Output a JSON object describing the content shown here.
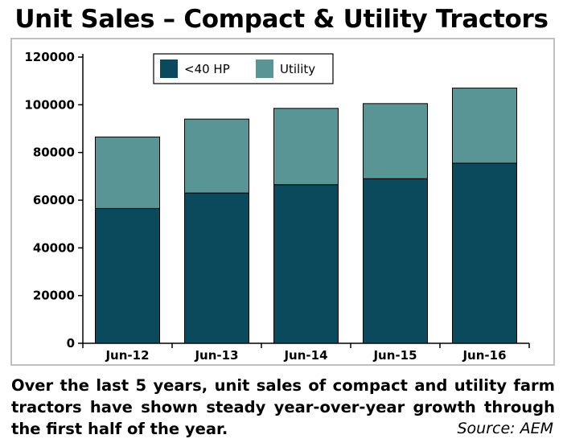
{
  "title": "Unit Sales – Compact & Utility Tractors",
  "caption": "Over the last 5 years, unit sales of compact and utility farm tractors have shown steady year-over-year growth through the first half of the year.",
  "source": "Source: AEM",
  "colors": {
    "under40hp": "#0b4a5c",
    "utility": "#5a9596",
    "frame": "#bfbfbf"
  },
  "chart_data": {
    "type": "bar",
    "stacked": true,
    "categories": [
      "Jun-12",
      "Jun-13",
      "Jun-14",
      "Jun-15",
      "Jun-16"
    ],
    "series": [
      {
        "name": "<40 HP",
        "values": [
          56500,
          63000,
          66500,
          69000,
          75500
        ]
      },
      {
        "name": "Utility",
        "values": [
          30000,
          31000,
          32000,
          31500,
          31500
        ]
      }
    ],
    "ylim": [
      0,
      120000
    ],
    "yticks": [
      "0",
      "20000",
      "40000",
      "60000",
      "80000",
      "100000",
      "120000"
    ],
    "grid": false,
    "legend": "top-left"
  }
}
